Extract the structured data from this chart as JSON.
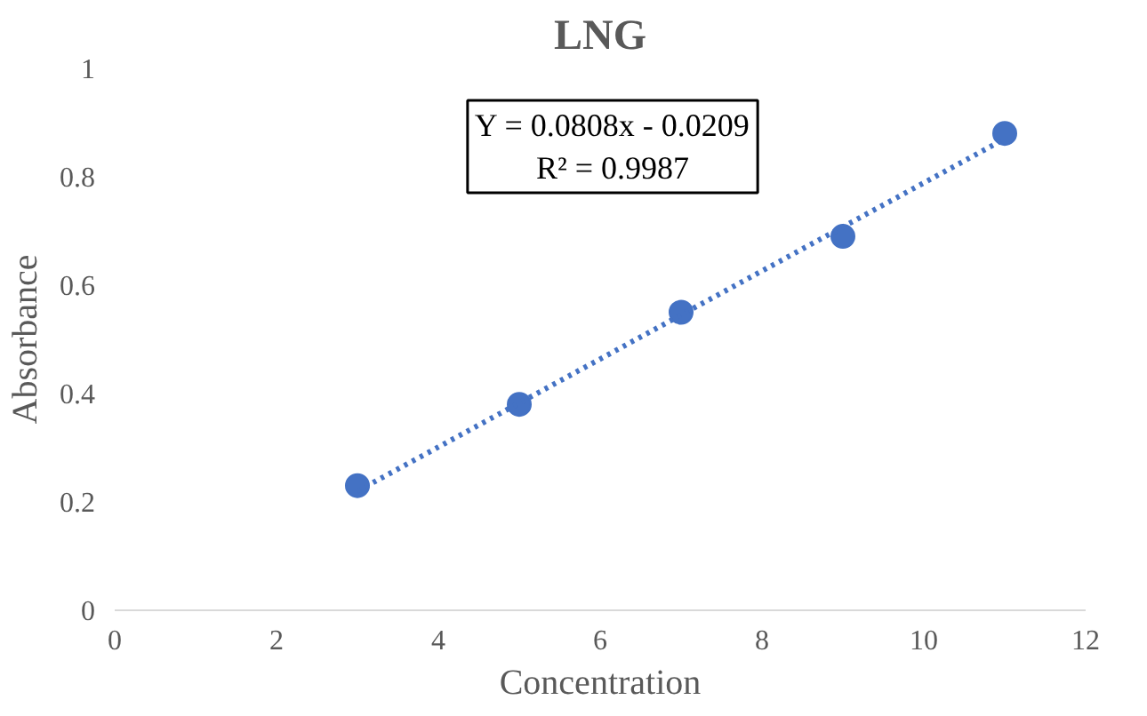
{
  "chart_data": {
    "type": "scatter",
    "title": "LNG",
    "xlabel": "Concentration",
    "ylabel": "Absorbance",
    "x": [
      3,
      5,
      7,
      9,
      11
    ],
    "series": [
      {
        "color": "#4472c4",
        "marker": "circle",
        "values": [
          0.23,
          0.38,
          0.55,
          0.69,
          0.88
        ]
      },
      {
        "type": "line",
        "color": "#4472c4",
        "line_style": "dotted",
        "marker": "none",
        "x": [
          3,
          11
        ],
        "values": [
          0.22,
          0.87
        ]
      }
    ],
    "annotations": [
      "Y = 0.0808x - 0.0209",
      "R² = 0.9987"
    ],
    "xlim": [
      0,
      12
    ],
    "xticks": [
      0,
      2,
      4,
      6,
      8,
      10,
      12
    ],
    "ylim": [
      0,
      1
    ],
    "yticks": [
      0,
      0.2,
      0.4,
      0.6,
      0.8,
      1
    ],
    "grid": false
  }
}
